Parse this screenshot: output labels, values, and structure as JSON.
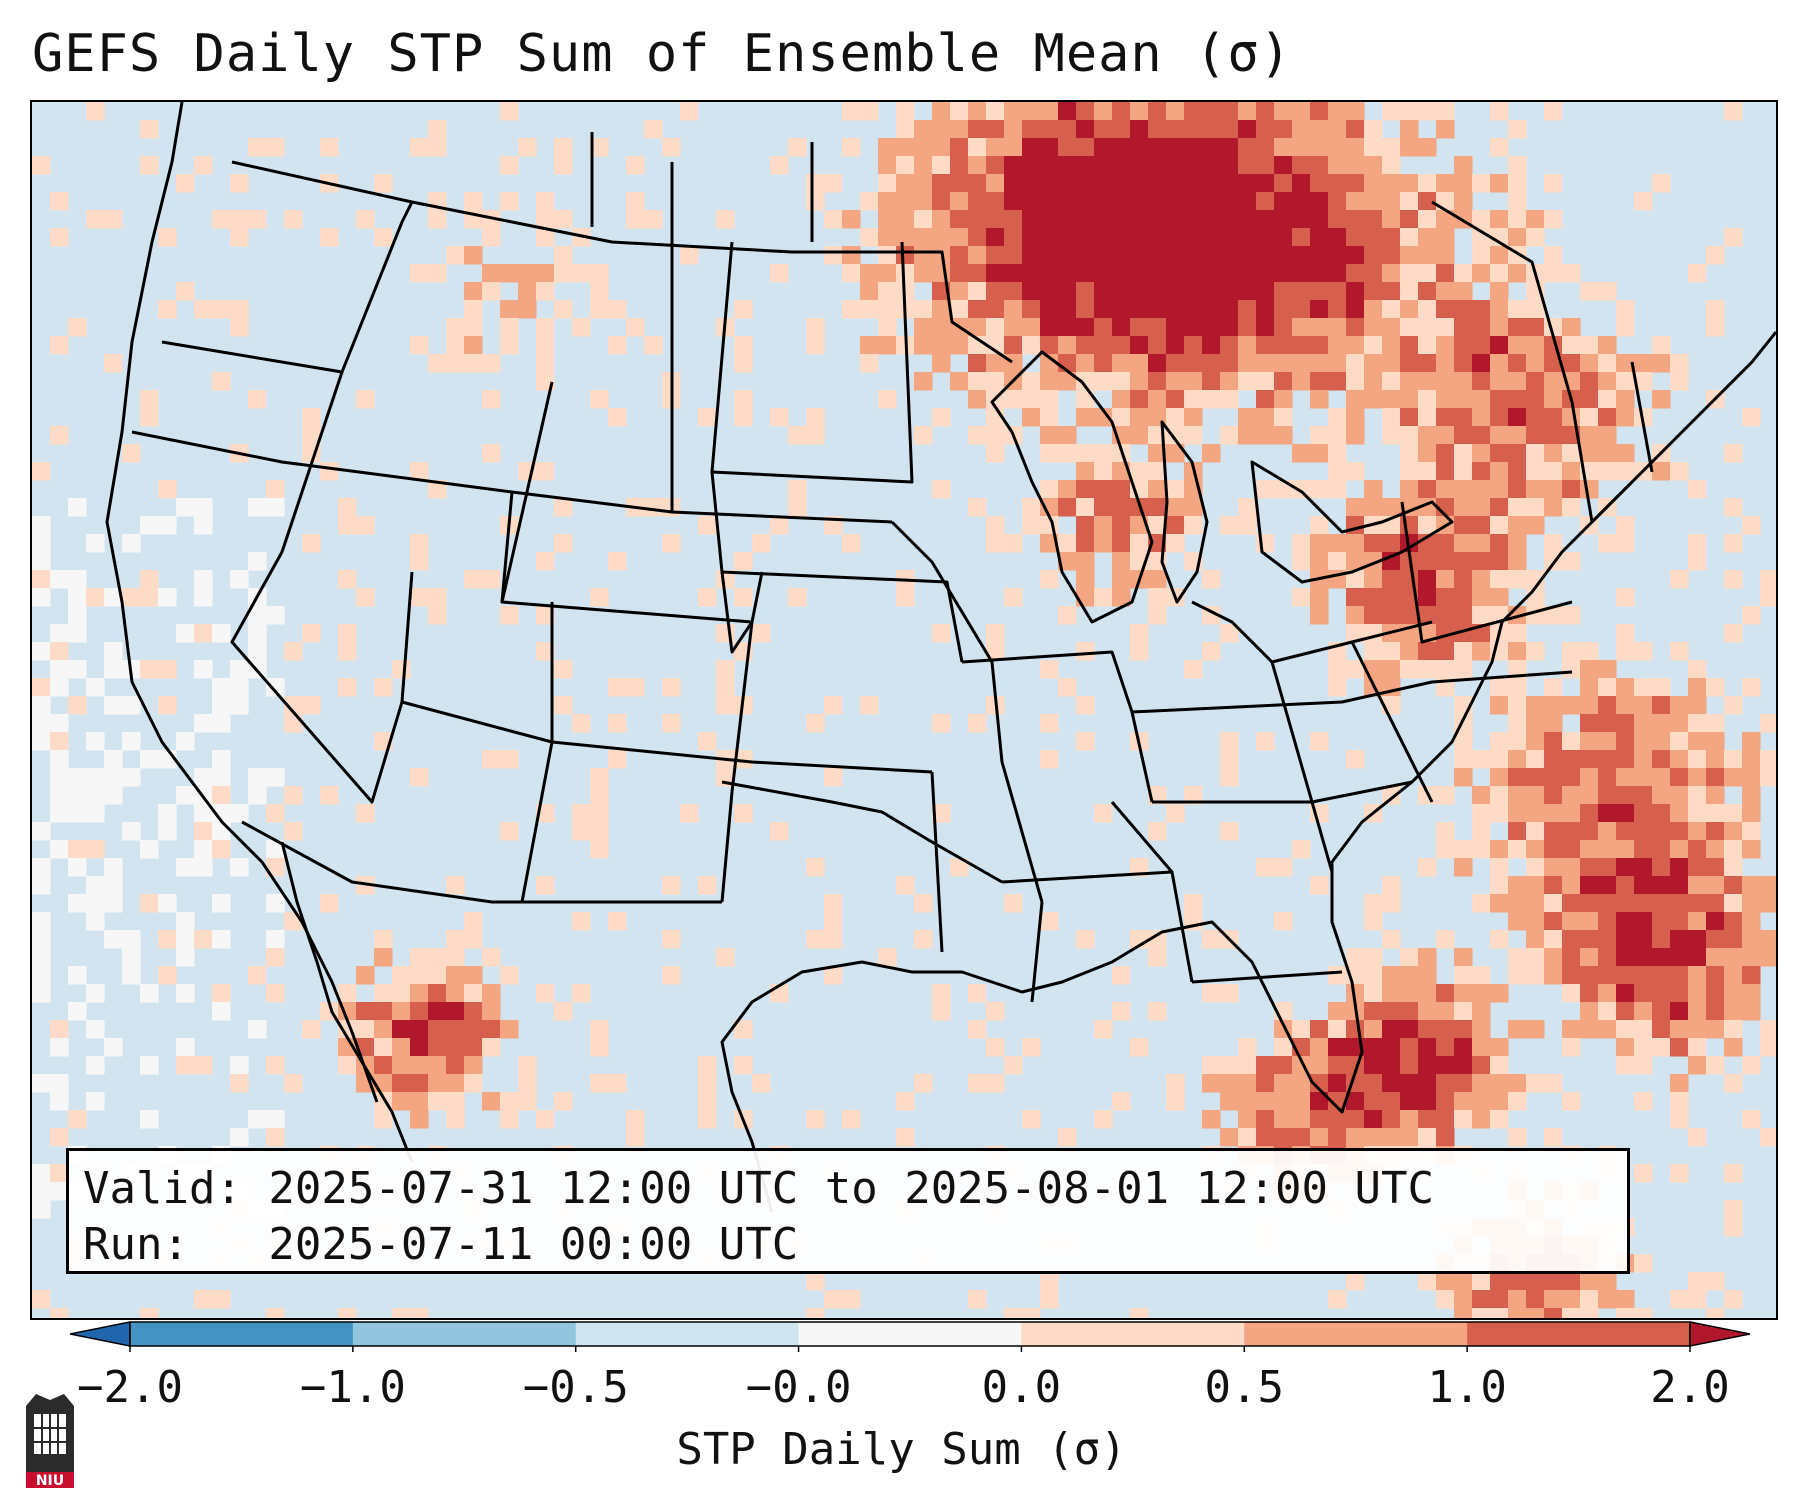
{
  "title": "GEFS Daily STP Sum of Ensemble Mean (σ)",
  "info": {
    "valid_line": "Valid: 2025-07-31 12:00 UTC to 2025-08-01 12:00 UTC",
    "run_line": "Run:   2025-07-11 00:00 UTC"
  },
  "colorbar": {
    "label": "STP Daily Sum (σ)",
    "ticks": [
      "−2.0",
      "−1.0",
      "−0.5",
      "−0.0",
      "0.0",
      "0.5",
      "1.0",
      "2.0"
    ],
    "colors": [
      "#2166ac",
      "#4393c3",
      "#92c5de",
      "#d1e5f0",
      "#f7f7f7",
      "#fddbc7",
      "#f4a582",
      "#d6604d",
      "#b2182b"
    ]
  },
  "logo": {
    "text": "NIU"
  },
  "map": {
    "region": "CONUS Lambert Conformal",
    "background_color": "#d2e4ef",
    "border_color": "#000000"
  }
}
